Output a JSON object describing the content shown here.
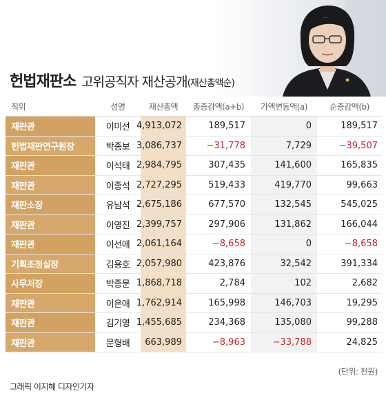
{
  "title": {
    "main": "헌법재판소",
    "sub": "고위공직자 재산공개",
    "paren": "(재산총액순)"
  },
  "headers": [
    "직위",
    "성명",
    "재산총액",
    "총증감액(a+b)",
    "가액변동액(a)",
    "순증감액(b)"
  ],
  "rows": [
    {
      "position": "재판관",
      "name": "이미선",
      "total": "4,913,072",
      "change": "189,517",
      "valuation": "0",
      "net": "189,517"
    },
    {
      "position": "헌법재판연구원장",
      "name": "박종보",
      "total": "3,086,737",
      "change": "−31,778",
      "valuation": "7,729",
      "net": "−39,507"
    },
    {
      "position": "재판관",
      "name": "이석태",
      "total": "2,984,795",
      "change": "307,435",
      "valuation": "141,600",
      "net": "165,835"
    },
    {
      "position": "재판관",
      "name": "이종석",
      "total": "2,727,295",
      "change": "519,433",
      "valuation": "419,770",
      "net": "99,663"
    },
    {
      "position": "재판소장",
      "name": "유남석",
      "total": "2,675,186",
      "change": "677,570",
      "valuation": "132,545",
      "net": "545,025"
    },
    {
      "position": "재판관",
      "name": "이영진",
      "total": "2,399,757",
      "change": "297,906",
      "valuation": "131,862",
      "net": "166,044"
    },
    {
      "position": "재판관",
      "name": "이선애",
      "total": "2,061,164",
      "change": "−8,658",
      "valuation": "0",
      "net": "−8,658"
    },
    {
      "position": "기획조정실장",
      "name": "김용호",
      "total": "2,057,980",
      "change": "423,876",
      "valuation": "32,542",
      "net": "391,334"
    },
    {
      "position": "사무처장",
      "name": "박종문",
      "total": "1,868,718",
      "change": "2,784",
      "valuation": "102",
      "net": "2,682"
    },
    {
      "position": "재판관",
      "name": "이은애",
      "total": "1,762,914",
      "change": "165,998",
      "valuation": "146,703",
      "net": "19,295"
    },
    {
      "position": "재판관",
      "name": "김기영",
      "total": "1,455,685",
      "change": "234,368",
      "valuation": "135,080",
      "net": "99,288"
    },
    {
      "position": "재판관",
      "name": "문형배",
      "total": "663,989",
      "change": "−8,963",
      "valuation": "−33,788",
      "net": "24,825"
    }
  ],
  "unit": "(단위: 천원)",
  "credit": "그래픽 이지혜 디자인기자",
  "colors": {
    "position_bg": "#d6a86c",
    "total_bg": "#f3dfc6",
    "negative": "#c0272d"
  }
}
